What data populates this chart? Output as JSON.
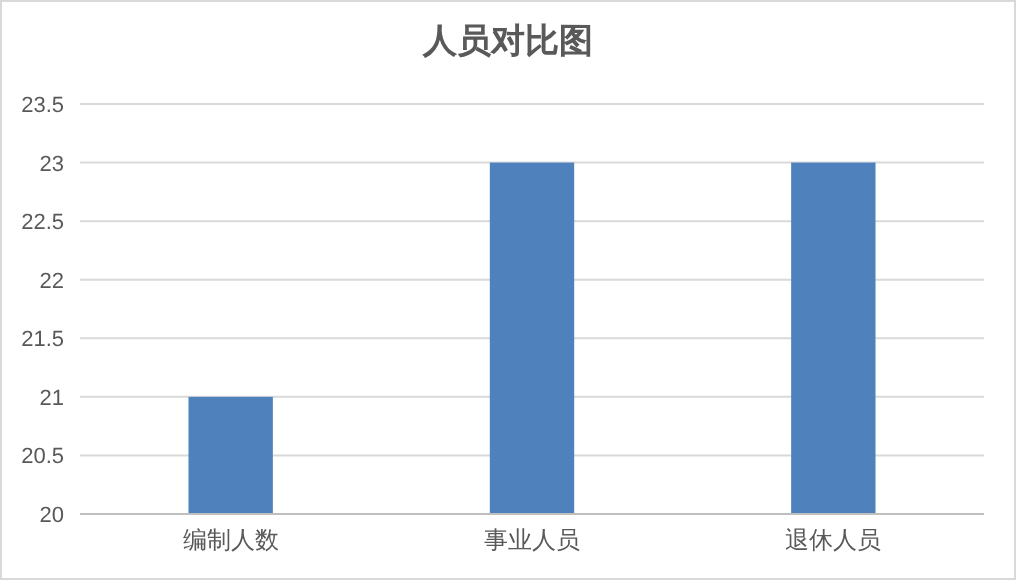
{
  "chart_data": {
    "type": "bar",
    "title": "人员对比图",
    "categories": [
      "编制人数",
      "事业人员",
      "退休人员"
    ],
    "values": [
      21,
      23,
      23
    ],
    "color": "#4f81bd",
    "ylim": [
      20,
      23.5
    ],
    "yticks": [
      20,
      20.5,
      21,
      21.5,
      22,
      22.5,
      23,
      23.5
    ],
    "grid": "y"
  }
}
